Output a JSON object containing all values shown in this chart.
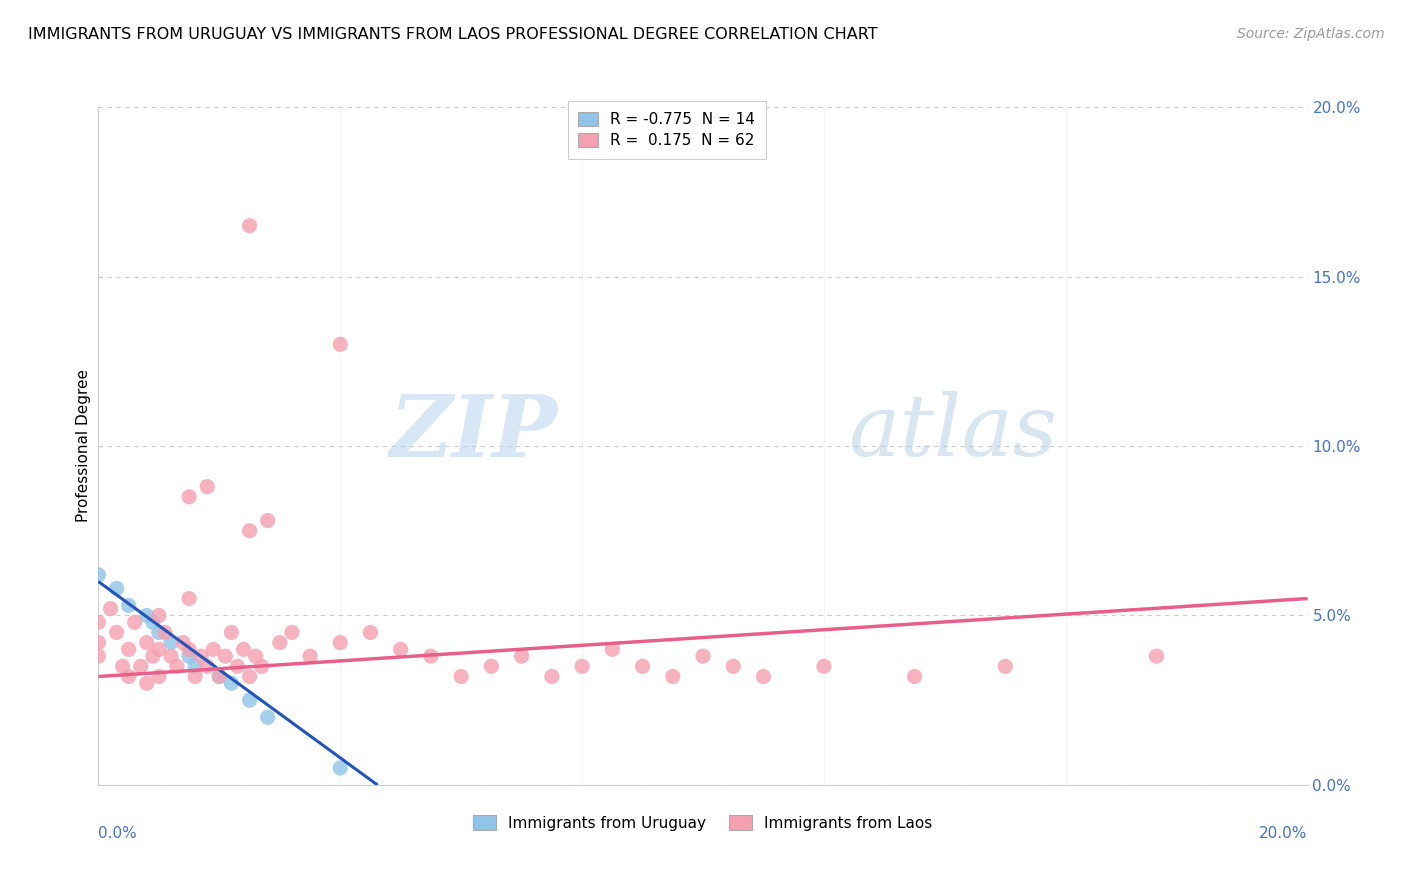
{
  "title": "IMMIGRANTS FROM URUGUAY VS IMMIGRANTS FROM LAOS PROFESSIONAL DEGREE CORRELATION CHART",
  "source": "Source: ZipAtlas.com",
  "ylabel": "Professional Degree",
  "ytick_vals": [
    0.0,
    5.0,
    10.0,
    15.0,
    20.0
  ],
  "xlim": [
    0.0,
    20.0
  ],
  "ylim": [
    0.0,
    20.0
  ],
  "color_uruguay": "#90c4e8",
  "color_laos": "#f4a0b0",
  "trendline_uruguay_color": "#2255bb",
  "trendline_laos_color": "#e8608a",
  "uruguay_points": [
    [
      0.0,
      6.2
    ],
    [
      0.3,
      5.8
    ],
    [
      0.5,
      5.3
    ],
    [
      0.8,
      5.0
    ],
    [
      0.9,
      4.8
    ],
    [
      1.0,
      4.5
    ],
    [
      1.2,
      4.2
    ],
    [
      1.5,
      3.8
    ],
    [
      1.6,
      3.5
    ],
    [
      2.0,
      3.2
    ],
    [
      2.2,
      3.0
    ],
    [
      2.5,
      2.5
    ],
    [
      2.8,
      2.0
    ],
    [
      4.0,
      0.5
    ]
  ],
  "laos_points": [
    [
      0.0,
      4.8
    ],
    [
      0.0,
      4.2
    ],
    [
      0.0,
      3.8
    ],
    [
      0.2,
      5.2
    ],
    [
      0.3,
      4.5
    ],
    [
      0.4,
      3.5
    ],
    [
      0.5,
      4.0
    ],
    [
      0.5,
      3.2
    ],
    [
      0.6,
      4.8
    ],
    [
      0.7,
      3.5
    ],
    [
      0.8,
      4.2
    ],
    [
      0.8,
      3.0
    ],
    [
      0.9,
      3.8
    ],
    [
      1.0,
      5.0
    ],
    [
      1.0,
      4.0
    ],
    [
      1.0,
      3.2
    ],
    [
      1.1,
      4.5
    ],
    [
      1.2,
      3.8
    ],
    [
      1.3,
      3.5
    ],
    [
      1.4,
      4.2
    ],
    [
      1.5,
      5.5
    ],
    [
      1.5,
      4.0
    ],
    [
      1.6,
      3.2
    ],
    [
      1.7,
      3.8
    ],
    [
      1.8,
      3.5
    ],
    [
      1.9,
      4.0
    ],
    [
      2.0,
      3.2
    ],
    [
      2.1,
      3.8
    ],
    [
      2.2,
      4.5
    ],
    [
      2.3,
      3.5
    ],
    [
      2.4,
      4.0
    ],
    [
      2.5,
      3.2
    ],
    [
      2.6,
      3.8
    ],
    [
      2.7,
      3.5
    ],
    [
      3.0,
      4.2
    ],
    [
      3.2,
      4.5
    ],
    [
      3.5,
      3.8
    ],
    [
      4.0,
      4.2
    ],
    [
      4.5,
      4.5
    ],
    [
      5.0,
      4.0
    ],
    [
      5.5,
      3.8
    ],
    [
      6.0,
      3.2
    ],
    [
      6.5,
      3.5
    ],
    [
      7.0,
      3.8
    ],
    [
      7.5,
      3.2
    ],
    [
      8.0,
      3.5
    ],
    [
      8.5,
      4.0
    ],
    [
      9.0,
      3.5
    ],
    [
      9.5,
      3.2
    ],
    [
      10.0,
      3.8
    ],
    [
      10.5,
      3.5
    ],
    [
      11.0,
      3.2
    ],
    [
      12.0,
      3.5
    ],
    [
      13.5,
      3.2
    ],
    [
      15.0,
      3.5
    ],
    [
      17.5,
      3.8
    ],
    [
      2.5,
      16.5
    ],
    [
      4.0,
      13.0
    ],
    [
      1.5,
      8.5
    ],
    [
      1.8,
      8.8
    ],
    [
      2.5,
      7.5
    ],
    [
      2.8,
      7.8
    ]
  ],
  "watermark_zip": "ZIP",
  "watermark_atlas": "atlas"
}
